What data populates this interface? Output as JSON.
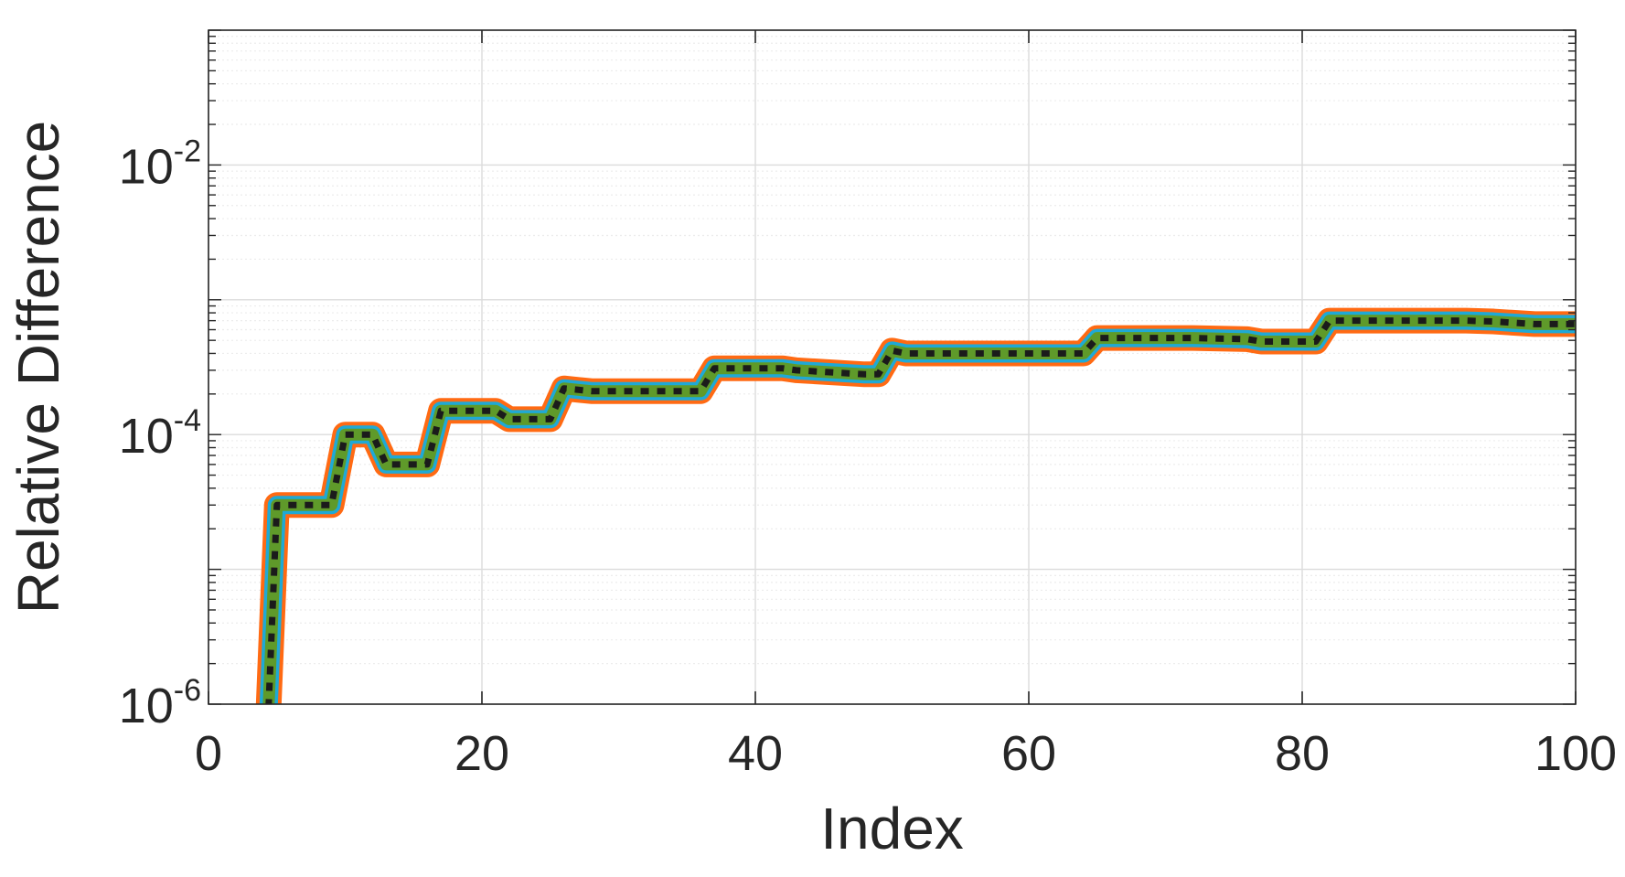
{
  "chart_data": {
    "type": "line",
    "xlabel": "Index",
    "ylabel": "Relative Difference",
    "xlim": [
      0,
      100
    ],
    "ylim": [
      1e-06,
      0.1
    ],
    "yscale": "log",
    "grid": true,
    "minor_grid": true,
    "box": true,
    "x_ticks": [
      0,
      20,
      40,
      60,
      80,
      100
    ],
    "x_tick_labels": [
      "0",
      "20",
      "40",
      "60",
      "80",
      "100"
    ],
    "y_ticks": [
      1e-06,
      0.0001,
      0.01
    ],
    "y_tick_labels": [
      {
        "base": "10",
        "exp": "-6"
      },
      {
        "base": "10",
        "exp": "-4"
      },
      {
        "base": "10",
        "exp": "-2"
      }
    ],
    "series": [
      {
        "color": "#ff6a13",
        "style": "solid",
        "width": "widest"
      },
      {
        "color": "#1fa9d6",
        "style": "solid",
        "width": "wide"
      },
      {
        "color": "#5f9a2a",
        "style": "solid",
        "width": "medium"
      },
      {
        "color": "#1b1b1b",
        "style": "dotted",
        "width": "thin"
      }
    ],
    "x": [
      4,
      5,
      9,
      10,
      12,
      13,
      16,
      17,
      21,
      22,
      25,
      26,
      28,
      36,
      37,
      42,
      43,
      48,
      49,
      50,
      51,
      64,
      65,
      66,
      72,
      76,
      77,
      81,
      82,
      92,
      94,
      97,
      100
    ],
    "y": [
      1e-07,
      3e-05,
      3e-05,
      0.0001,
      0.0001,
      6e-05,
      6e-05,
      0.00015,
      0.00015,
      0.00013,
      0.00013,
      0.00022,
      0.00021,
      0.00021,
      0.00031,
      0.00031,
      0.0003,
      0.00028,
      0.00028,
      0.00042,
      0.0004,
      0.0004,
      0.00052,
      0.00052,
      0.00052,
      0.00051,
      0.00049,
      0.00049,
      0.0007,
      0.0007,
      0.00069,
      0.00066,
      0.00066
    ]
  }
}
